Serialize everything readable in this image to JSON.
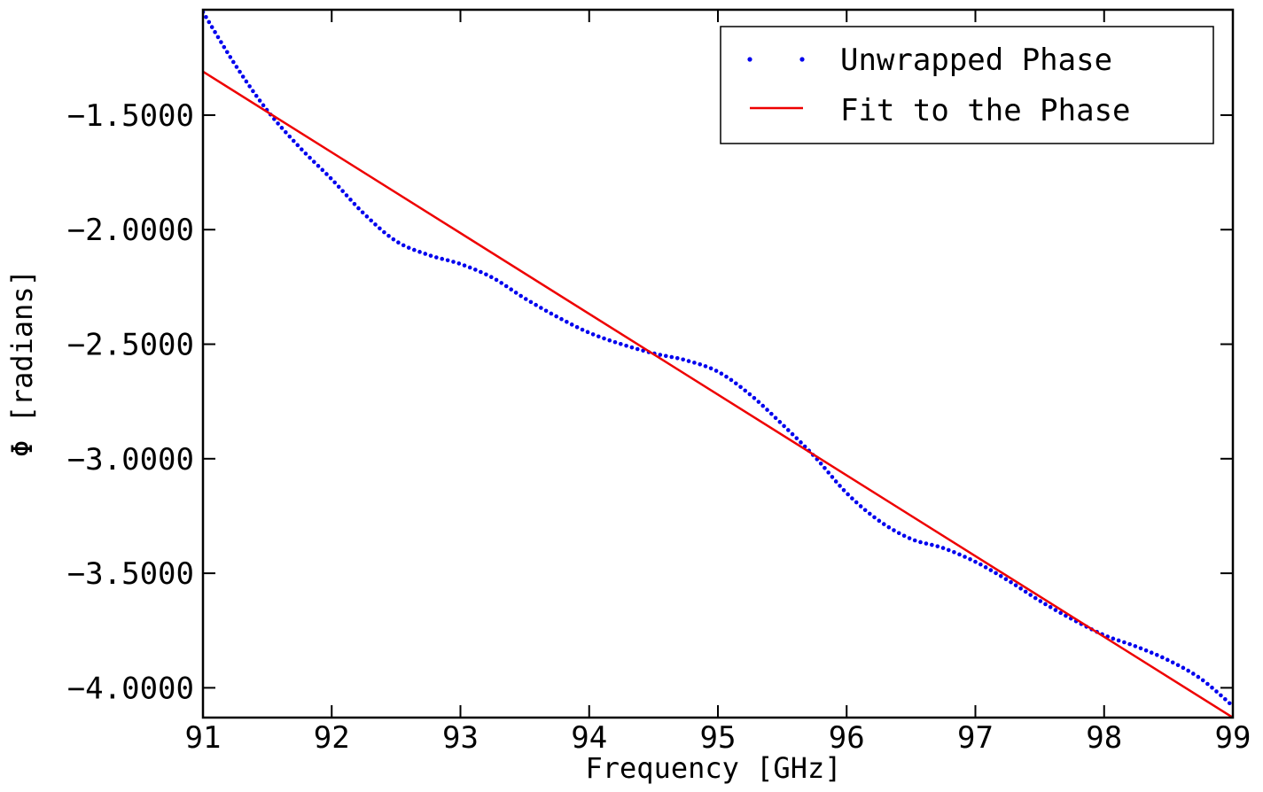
{
  "chart_data": {
    "type": "line",
    "xlabel": "Frequency [GHz]",
    "ylabel": "Φ [radians]",
    "xlim": [
      91,
      99
    ],
    "ylim": [
      -4.13,
      -1.04
    ],
    "xticks": [
      91,
      92,
      93,
      94,
      95,
      96,
      97,
      98,
      99
    ],
    "xtick_labels": [
      "91",
      "92",
      "93",
      "94",
      "95",
      "96",
      "97",
      "98",
      "99"
    ],
    "yticks": [
      -1.5,
      -2.0,
      -2.5,
      -3.0,
      -3.5,
      -4.0
    ],
    "ytick_labels": [
      "−1.5000",
      "−2.0000",
      "−2.5000",
      "−3.0000",
      "−3.5000",
      "−4.0000"
    ],
    "grid": false,
    "legend_position": "top-right",
    "colors": {
      "unwrapped": "#0000ee",
      "fit": "#ee0000"
    },
    "series": [
      {
        "name": "Unwrapped Phase",
        "style": "dotted",
        "x": [
          91.0,
          91.25,
          91.5,
          91.75,
          92.0,
          92.25,
          92.5,
          92.75,
          93.0,
          93.25,
          93.5,
          93.75,
          94.0,
          94.25,
          94.5,
          94.75,
          95.0,
          95.25,
          95.5,
          95.75,
          96.0,
          96.25,
          96.5,
          96.75,
          97.0,
          97.25,
          97.5,
          97.75,
          98.0,
          98.25,
          98.5,
          98.75,
          99.0
        ],
        "y": [
          -1.05,
          -1.28,
          -1.48,
          -1.64,
          -1.78,
          -1.93,
          -2.05,
          -2.11,
          -2.15,
          -2.21,
          -2.3,
          -2.38,
          -2.45,
          -2.5,
          -2.54,
          -2.57,
          -2.62,
          -2.72,
          -2.85,
          -2.99,
          -3.15,
          -3.27,
          -3.35,
          -3.39,
          -3.45,
          -3.53,
          -3.62,
          -3.7,
          -3.77,
          -3.82,
          -3.88,
          -3.96,
          -4.08
        ]
      },
      {
        "name": "Fit to the Phase",
        "style": "solid",
        "x": [
          91.0,
          99.0
        ],
        "y": [
          -1.31,
          -4.13
        ]
      }
    ]
  }
}
